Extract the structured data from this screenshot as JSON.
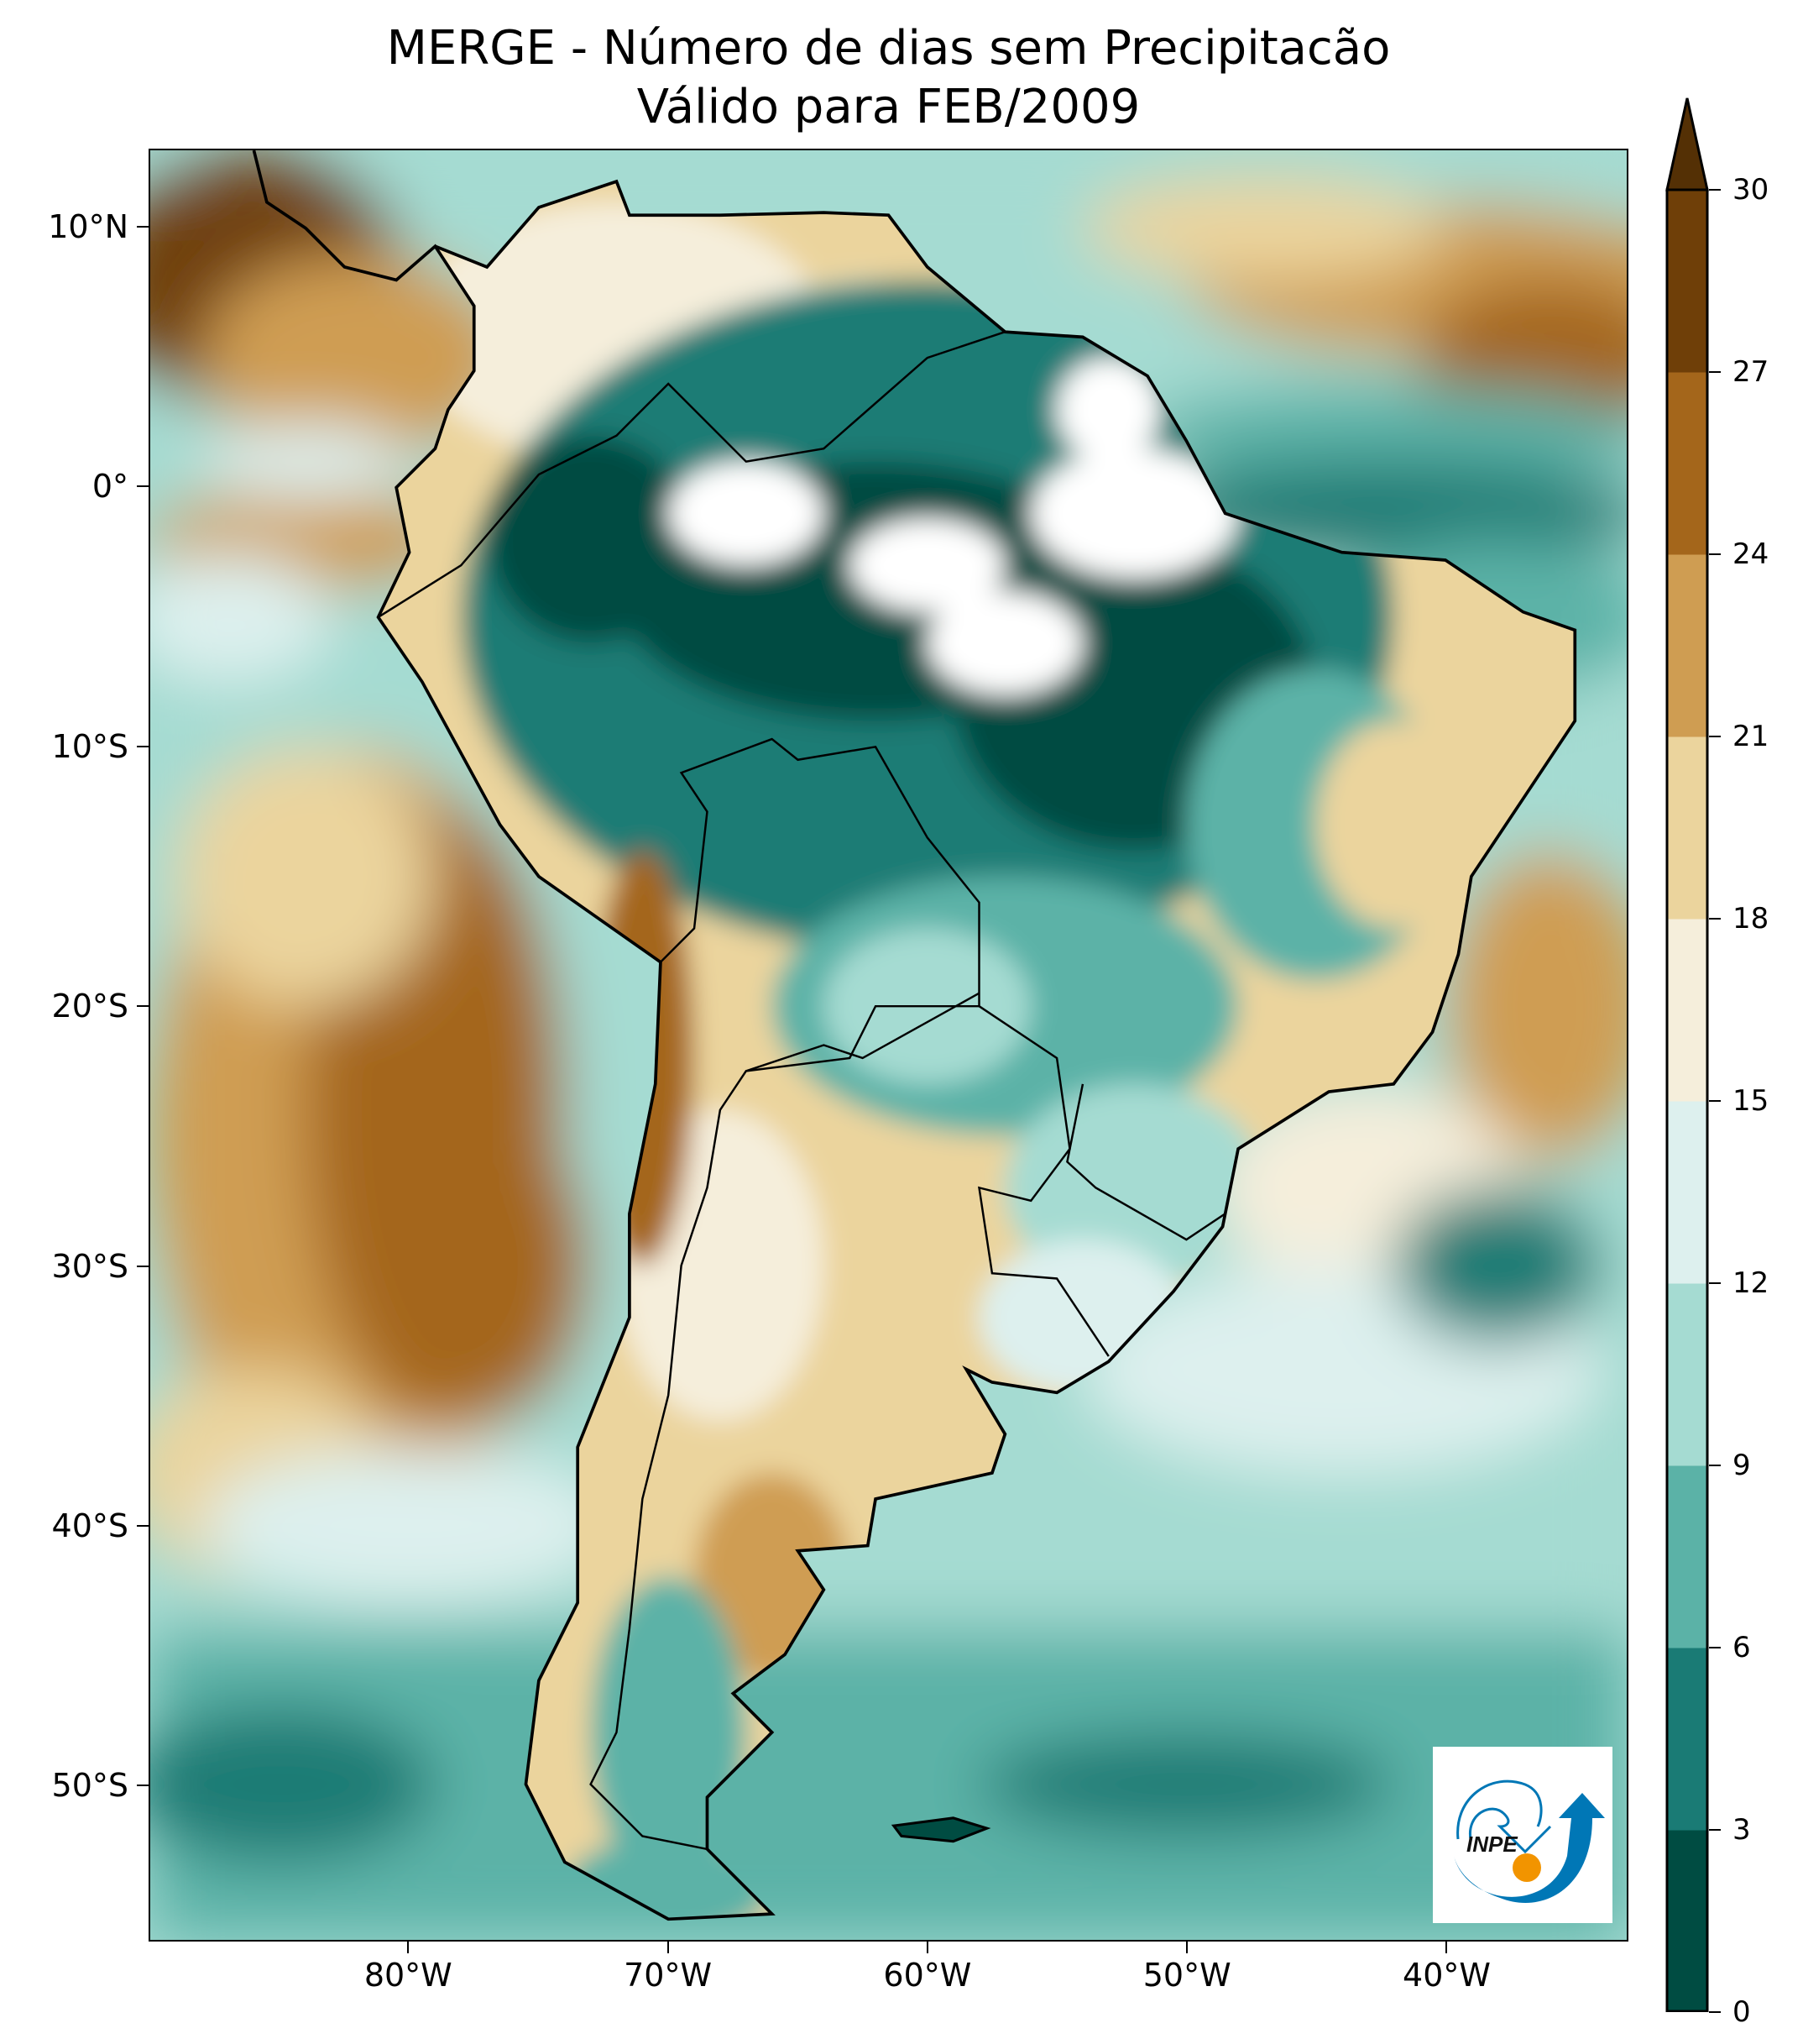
{
  "title": {
    "line1": "MERGE - Número de dias sem Precipitacão",
    "line2": "Válido para FEB/2009"
  },
  "map": {
    "extent": {
      "lon": [
        -90,
        -33
      ],
      "lat": [
        -56,
        13
      ]
    },
    "lat_ticks": [
      {
        "value": 10,
        "label": "10°N"
      },
      {
        "value": 0,
        "label": "0°"
      },
      {
        "value": -10,
        "label": "10°S"
      },
      {
        "value": -20,
        "label": "20°S"
      },
      {
        "value": -30,
        "label": "30°S"
      },
      {
        "value": -40,
        "label": "40°S"
      },
      {
        "value": -50,
        "label": "50°S"
      }
    ],
    "lon_ticks": [
      {
        "value": -80,
        "label": "80°W"
      },
      {
        "value": -70,
        "label": "70°W"
      },
      {
        "value": -60,
        "label": "60°W"
      },
      {
        "value": -50,
        "label": "50°W"
      },
      {
        "value": -40,
        "label": "40°W"
      }
    ]
  },
  "colorbar": {
    "levels": [
      0,
      3,
      6,
      9,
      12,
      15,
      18,
      21,
      24,
      27,
      30
    ],
    "labels": [
      "0",
      "3",
      "6",
      "9",
      "12",
      "15",
      "18",
      "21",
      "24",
      "27",
      "30"
    ],
    "colors": [
      "#004c42",
      "#1a7b75",
      "#5bb2a7",
      "#a5dbd2",
      "#ddf0ee",
      "#f5eedb",
      "#ebd49d",
      "#cf9d52",
      "#a4661b",
      "#6f3f08"
    ],
    "over_color": "#543005",
    "extend": "max"
  },
  "logo": {
    "text": "INPE",
    "colors": {
      "blue": "#0077b6",
      "orange": "#f29400"
    }
  }
}
